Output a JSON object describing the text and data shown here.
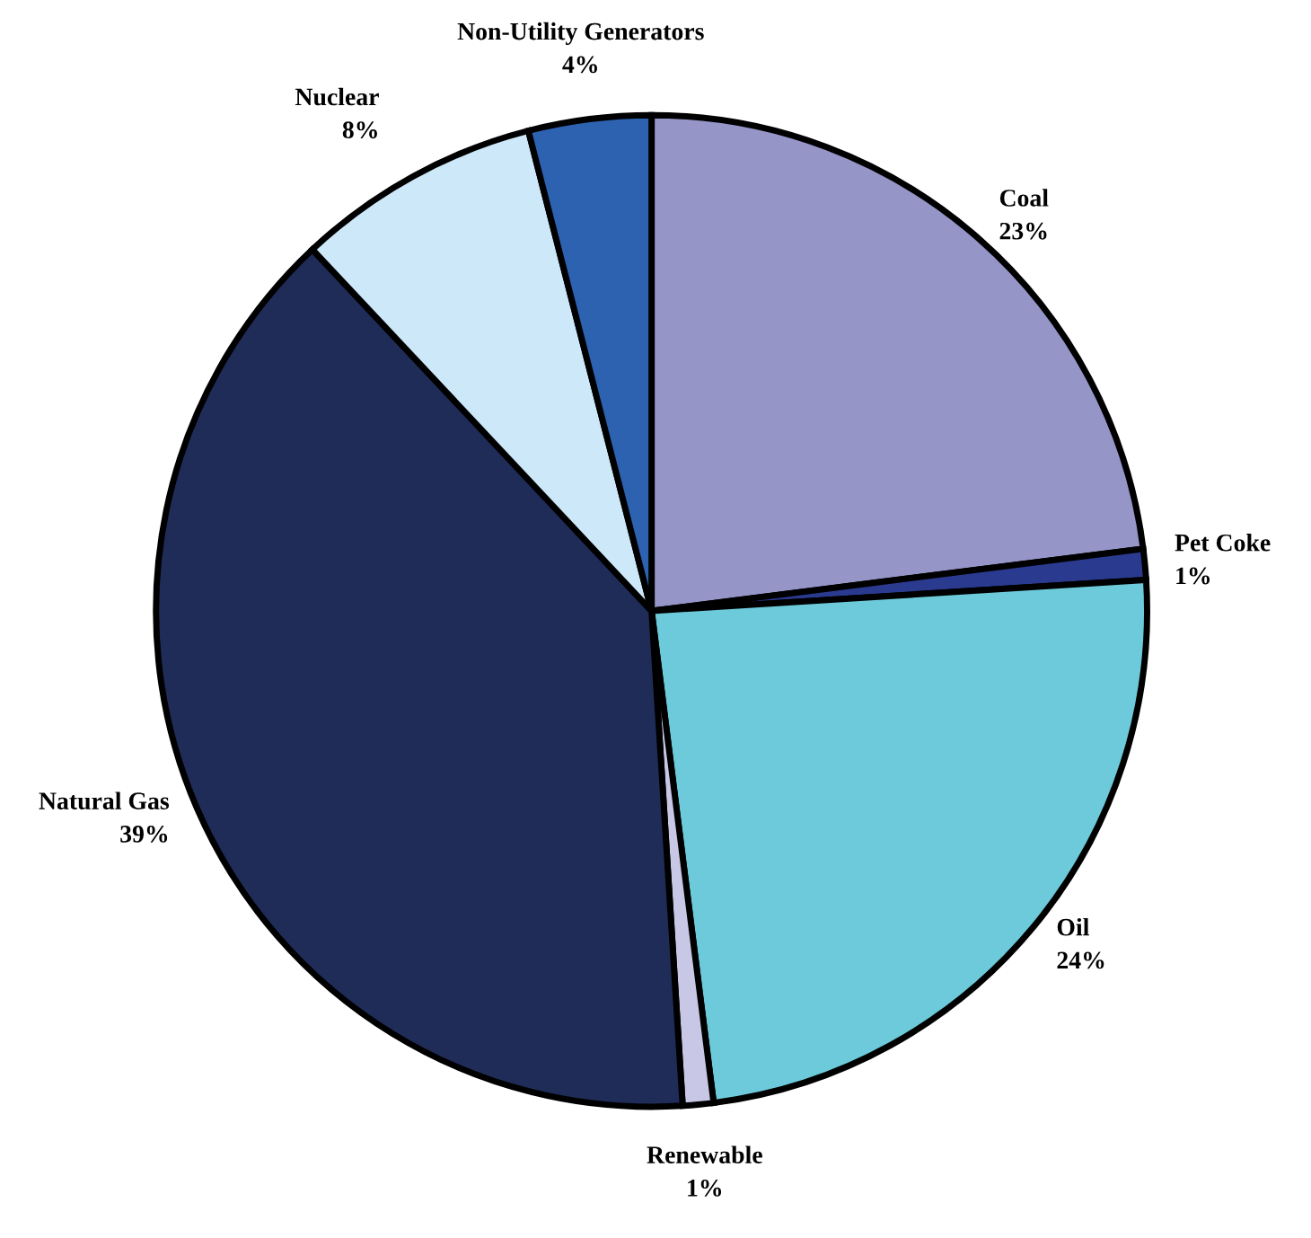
{
  "chart_data": {
    "type": "pie",
    "categories": [
      "Coal",
      "Pet Coke",
      "Oil",
      "Renewable",
      "Natural Gas",
      "Nuclear",
      "Non-Utility Generators"
    ],
    "values": [
      23,
      1,
      24,
      1,
      39,
      8,
      4
    ],
    "value_labels": [
      "23%",
      "1%",
      "24%",
      "1%",
      "39%",
      "8%",
      "4%"
    ],
    "colors": [
      "#9595c8",
      "#2a3a8f",
      "#6ccadb",
      "#c8c8e6",
      "#1f2c58",
      "#cde8f8",
      "#2d62b0"
    ]
  }
}
